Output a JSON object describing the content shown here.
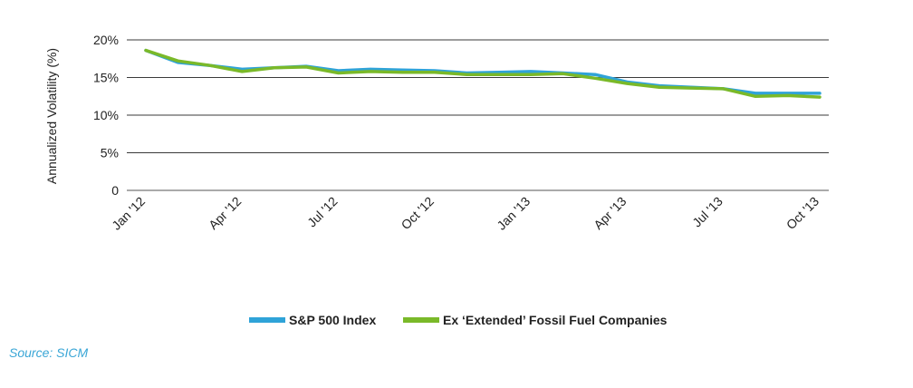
{
  "chart_data": {
    "type": "line",
    "ylabel": "Annualized Volatility (%)",
    "xlabel": "",
    "ylim": [
      0,
      20
    ],
    "yticks": [
      0,
      5,
      10,
      15,
      20
    ],
    "ytick_labels": [
      "0",
      "5%",
      "10%",
      "15%",
      "20%"
    ],
    "grid": "horizontal",
    "x": [
      "Jan '12",
      "Feb '12",
      "Mar '12",
      "Apr '12",
      "May '12",
      "Jun '12",
      "Jul '12",
      "Aug '12",
      "Sep '12",
      "Oct '12",
      "Nov '12",
      "Dec '12",
      "Jan '13",
      "Feb '13",
      "Mar '13",
      "Apr '13",
      "May '13",
      "Jun '13",
      "Jul '13",
      "Aug '13",
      "Sep '13",
      "Oct '13"
    ],
    "xtick_labels": [
      "Jan '12",
      "Apr '12",
      "Jul '12",
      "Oct '12",
      "Jan '13",
      "Apr '13",
      "Jul '13",
      "Oct '13"
    ],
    "xtick_months": [
      "Jan '12",
      "Apr '12",
      "Jul '12",
      "Oct '12",
      "Jan '13",
      "Apr '13",
      "Jul '13",
      "Oct '13"
    ],
    "series": [
      {
        "name": "S&P 500 Index",
        "color": "#2fa3d8",
        "values": [
          18.6,
          17.0,
          16.6,
          16.1,
          16.3,
          16.5,
          15.9,
          16.1,
          16.0,
          15.9,
          15.6,
          15.7,
          15.8,
          15.6,
          15.4,
          14.4,
          13.9,
          13.7,
          13.5,
          12.9,
          12.9,
          12.9
        ]
      },
      {
        "name": "Ex ‘Extended’ Fossil Fuel Companies",
        "color": "#7ab929",
        "values": [
          18.6,
          17.2,
          16.6,
          15.8,
          16.3,
          16.4,
          15.6,
          15.8,
          15.7,
          15.7,
          15.4,
          15.4,
          15.4,
          15.5,
          14.9,
          14.2,
          13.7,
          13.6,
          13.5,
          12.5,
          12.6,
          12.4
        ]
      }
    ],
    "legend_position": "bottom-center"
  },
  "source": "Source: SICM"
}
